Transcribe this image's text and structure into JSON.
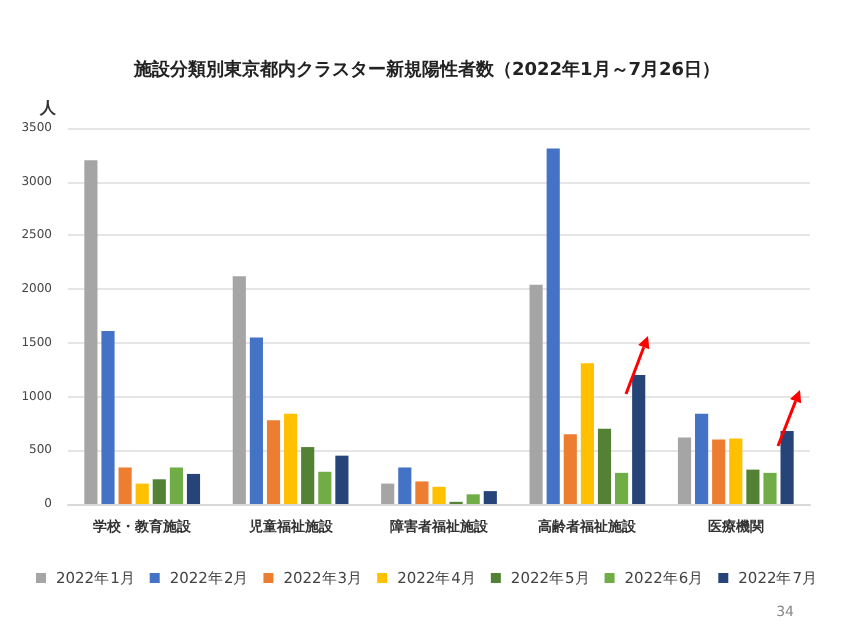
{
  "chart_data": {
    "type": "bar",
    "title": "施設分類別東京都内クラスター新規陽性者数（2022年1月～7月26日）",
    "ylabel": "人",
    "categories": [
      "学校・教育施設",
      "児童福祉施設",
      "障害者福祉施設",
      "高齢者福祉施設",
      "医療機関"
    ],
    "series": [
      {
        "name": "2022年1月",
        "color": "#a5a5a5",
        "values": [
          3200,
          2120,
          190,
          2040,
          620
        ]
      },
      {
        "name": "2022年2月",
        "color": "#4472c4",
        "values": [
          1610,
          1550,
          340,
          3310,
          840
        ]
      },
      {
        "name": "2022年3月",
        "color": "#ed7d31",
        "values": [
          340,
          780,
          210,
          650,
          600
        ]
      },
      {
        "name": "2022年4月",
        "color": "#ffc000",
        "values": [
          190,
          840,
          160,
          1310,
          610
        ]
      },
      {
        "name": "2022年5月",
        "color": "#548235",
        "values": [
          230,
          530,
          20,
          700,
          320
        ]
      },
      {
        "name": "2022年6月",
        "color": "#70ad47",
        "values": [
          340,
          300,
          90,
          290,
          290
        ]
      },
      {
        "name": "2022年7月",
        "color": "#264478",
        "values": [
          280,
          450,
          120,
          1200,
          680
        ]
      }
    ],
    "ylim": [
      0,
      3500
    ],
    "yticks": [
      0,
      500,
      1000,
      1500,
      2000,
      2500,
      3000,
      3500
    ],
    "grid": "y",
    "legend": "bottom",
    "annotations": [
      "34"
    ]
  }
}
